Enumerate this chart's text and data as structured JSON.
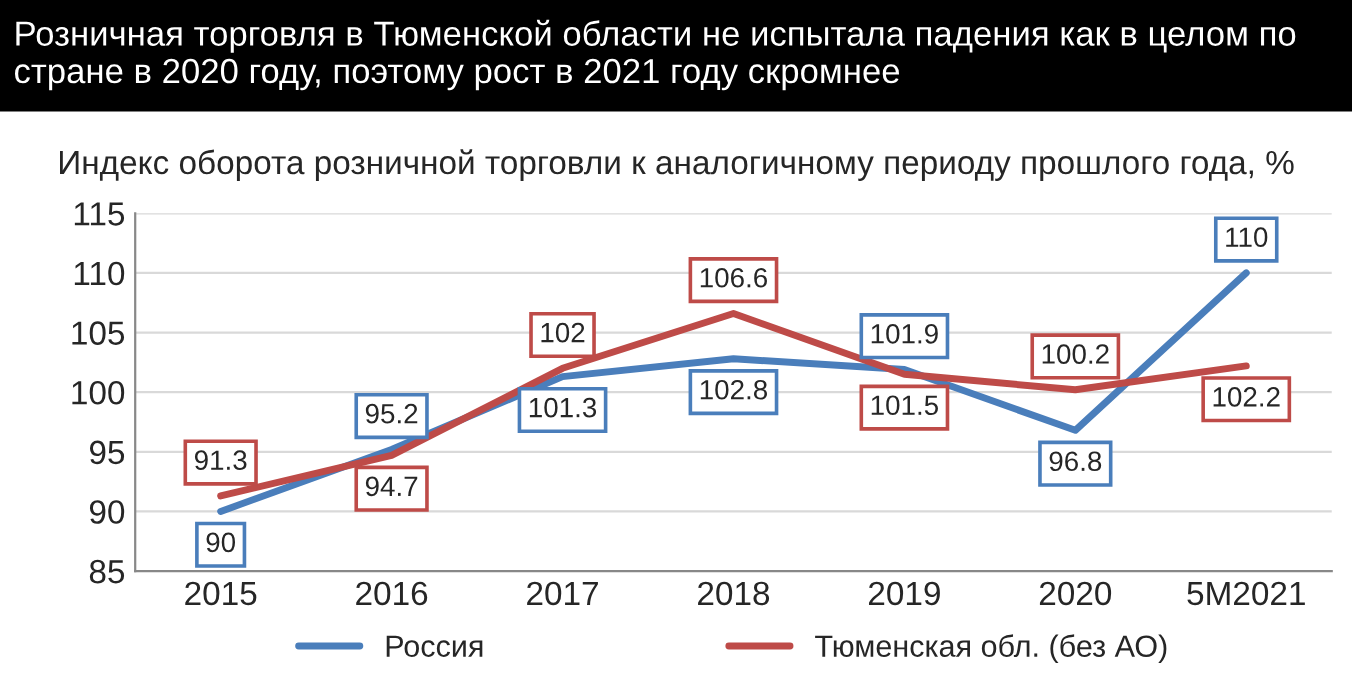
{
  "chart_data": {
    "type": "line",
    "title": "Розничная торговля в Тюменской области не испытала падения как в целом по стране в 2020 году, поэтому рост в 2021 году скромнее",
    "subtitle": "Индекс оборота розничной торговли к аналогичному периоду прошлого года, %",
    "categories": [
      "2015",
      "2016",
      "2017",
      "2018",
      "2019",
      "2020",
      "5M2021"
    ],
    "series": [
      {
        "name": "Россия",
        "color": "#4a7ebb",
        "values": [
          90,
          95.2,
          101.3,
          102.8,
          101.9,
          96.8,
          110
        ]
      },
      {
        "name": "Тюменская обл. (без АО)",
        "color": "#be4b48",
        "values": [
          91.3,
          94.7,
          102,
          106.6,
          101.5,
          100.2,
          102.2
        ]
      }
    ],
    "ylim": [
      85,
      115
    ],
    "yticks": [
      85,
      90,
      95,
      100,
      105,
      110,
      115
    ],
    "grid": "y",
    "legend": "bottom",
    "data_labels": true,
    "marker": "none",
    "line_style": "solid"
  }
}
